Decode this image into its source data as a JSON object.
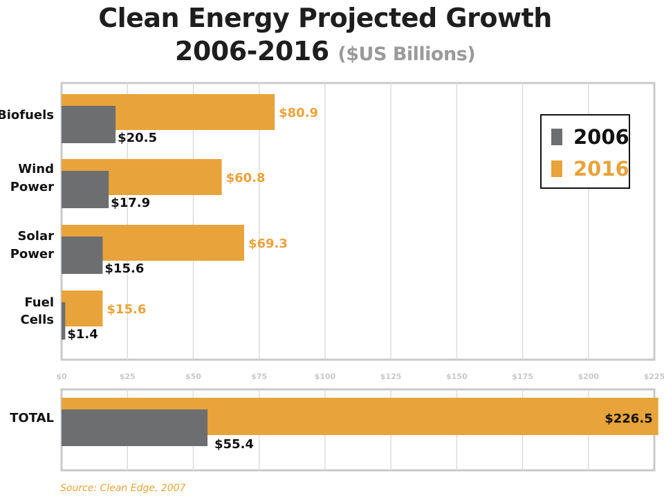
{
  "title_line1": "Clean Energy Projected Growth",
  "title_line2": "2006-2016",
  "title_unit": "($US Billions)",
  "source": "Source: Clean Edge, 2007",
  "colors": {
    "y2006": "#6d6e70",
    "y2016": "#e8a33a",
    "grid": "#dcdcdc",
    "frame": "#c9c9c9"
  },
  "chart_data": {
    "type": "bar",
    "orientation": "horizontal",
    "title": "Clean Energy Projected Growth 2006-2016 ($US Billions)",
    "categories": [
      [
        "Biofuels"
      ],
      [
        "Wind",
        "Power"
      ],
      [
        "Solar",
        "Power"
      ],
      [
        "Fuel",
        "Cells"
      ]
    ],
    "series": [
      {
        "name": "2006",
        "values": [
          20.5,
          17.9,
          15.6,
          1.4
        ],
        "labels": [
          "$20.5",
          "$17.9",
          "$15.6",
          "$1.4"
        ]
      },
      {
        "name": "2016",
        "values": [
          80.9,
          60.8,
          69.3,
          15.6
        ],
        "labels": [
          "$80.9",
          "$60.8",
          "$69.3",
          "$15.6"
        ]
      }
    ],
    "xlim": [
      0,
      225
    ],
    "xticks": [
      0,
      25,
      50,
      75,
      100,
      125,
      150,
      175,
      200,
      225
    ],
    "xtick_labels": [
      "$0",
      "$25",
      "$50",
      "$75",
      "$100",
      "$125",
      "$150",
      "$175",
      "$200",
      "$225"
    ],
    "grid": true,
    "legend_position": "top-right",
    "total": {
      "label": "TOTAL",
      "values": {
        "2006": 55.4,
        "2016": 226.5
      },
      "labels": {
        "2006": "$55.4",
        "2016": "$226.5"
      }
    }
  }
}
